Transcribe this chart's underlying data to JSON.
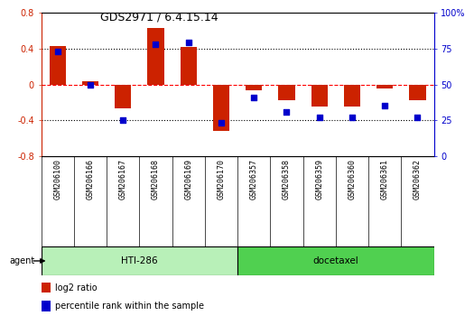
{
  "title": "GDS2971 / 6.4.15.14",
  "samples": [
    "GSM206100",
    "GSM206166",
    "GSM206167",
    "GSM206168",
    "GSM206169",
    "GSM206170",
    "GSM206357",
    "GSM206358",
    "GSM206359",
    "GSM206360",
    "GSM206361",
    "GSM206362"
  ],
  "log2_ratio": [
    0.43,
    0.04,
    -0.27,
    0.63,
    0.42,
    -0.52,
    -0.07,
    -0.18,
    -0.25,
    -0.25,
    -0.05,
    -0.18
  ],
  "percentile_rank": [
    73,
    50,
    25,
    78,
    79,
    23,
    41,
    31,
    27,
    27,
    35,
    27
  ],
  "groups": [
    {
      "label": "HTI-286",
      "start": 0,
      "end": 5,
      "color": "#b8f0b8"
    },
    {
      "label": "docetaxel",
      "start": 6,
      "end": 11,
      "color": "#50d050"
    }
  ],
  "agent_label": "agent",
  "bar_color_red": "#CC2200",
  "bar_color_blue": "#0000CC",
  "ylim_left": [
    -0.8,
    0.8
  ],
  "ylim_right": [
    0,
    100
  ],
  "yticks_left": [
    -0.8,
    -0.4,
    0.0,
    0.4,
    0.8
  ],
  "yticks_right": [
    0,
    25,
    50,
    75,
    100
  ],
  "hline_dotted_vals": [
    0.4,
    -0.4
  ],
  "hline_red_val": 0.0,
  "legend_items": [
    {
      "label": "log2 ratio",
      "color": "#CC2200"
    },
    {
      "label": "percentile rank within the sample",
      "color": "#0000CC"
    }
  ],
  "background_color": "#ffffff",
  "plot_bg_color": "#ffffff",
  "label_bg_color": "#d8d8d8"
}
